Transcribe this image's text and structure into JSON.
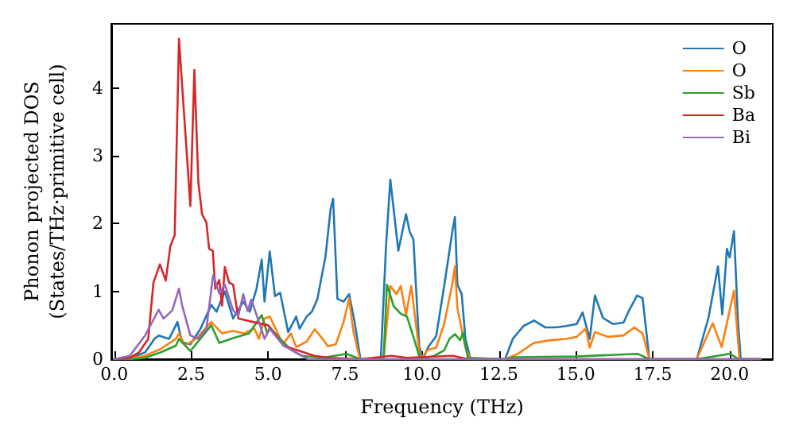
{
  "chart_data": {
    "type": "line",
    "xlabel": "Frequency (THz)",
    "ylabel": "Phonon projected DOS\n(States/THz·primitive cell)",
    "xlim": [
      -0.1,
      21.4
    ],
    "ylim": [
      0,
      4.95
    ],
    "xticks": [
      {
        "value": 0,
        "label": "0.0"
      },
      {
        "value": 2.5,
        "label": "2.5"
      },
      {
        "value": 5,
        "label": "5.0"
      },
      {
        "value": 7.5,
        "label": "7.5"
      },
      {
        "value": 10,
        "label": "10.0"
      },
      {
        "value": 12.5,
        "label": "12.5"
      },
      {
        "value": 15,
        "label": "15.0"
      },
      {
        "value": 17.5,
        "label": "17.5"
      },
      {
        "value": 20,
        "label": "20.0"
      }
    ],
    "yticks": [
      0,
      1,
      2,
      3,
      4
    ],
    "grid": false,
    "legend": "top right",
    "marker": "none",
    "line_style": "solid",
    "series": [
      {
        "name": "O",
        "color": "#1f77b4",
        "x": [
          0,
          0.5,
          1.0,
          1.3,
          1.44,
          1.78,
          2.05,
          2.2,
          2.47,
          2.8,
          3.15,
          3.32,
          3.59,
          3.86,
          4.19,
          4.4,
          4.62,
          4.79,
          4.88,
          5.05,
          5.22,
          5.39,
          5.65,
          5.91,
          6.02,
          6.25,
          6.42,
          6.6,
          6.86,
          7.03,
          7.11,
          7.25,
          7.45,
          7.63,
          7.8,
          8.0,
          8.66,
          8.83,
          8.97,
          9.23,
          9.48,
          9.6,
          9.72,
          9.91,
          10.03,
          10.2,
          10.46,
          10.72,
          10.98,
          11.07,
          11.15,
          11.29,
          11.41,
          11.58,
          12.7,
          12.95,
          13.3,
          13.64,
          14.0,
          14.35,
          14.69,
          15.03,
          15.22,
          15.45,
          15.62,
          15.88,
          16.2,
          16.55,
          16.72,
          16.99,
          17.17,
          17.39,
          18.93,
          19.31,
          19.62,
          19.76,
          19.91,
          20.0,
          20.14,
          20.27,
          20.36,
          21.0
        ],
        "values": [
          0,
          0.02,
          0.1,
          0.3,
          0.35,
          0.3,
          0.55,
          0.25,
          0.22,
          0.45,
          0.8,
          0.7,
          1.0,
          0.6,
          0.85,
          0.7,
          1.04,
          1.47,
          0.85,
          1.59,
          0.93,
          0.98,
          0.4,
          0.63,
          0.45,
          0.63,
          0.7,
          0.89,
          1.51,
          2.22,
          2.37,
          0.89,
          0.85,
          0.96,
          0.57,
          0,
          0,
          1.67,
          2.65,
          1.6,
          2.14,
          1.88,
          1.77,
          0.19,
          0,
          0.18,
          0.34,
          1.08,
          1.87,
          2.1,
          1.1,
          0.96,
          0.3,
          0,
          0,
          0.3,
          0.49,
          0.57,
          0.47,
          0.47,
          0.49,
          0.52,
          0.69,
          0.3,
          0.94,
          0.61,
          0.52,
          0.54,
          0.71,
          0.94,
          0.9,
          0,
          0,
          0.61,
          1.37,
          0.66,
          1.63,
          1.5,
          1.89,
          0.56,
          0,
          0
        ]
      },
      {
        "name": "O",
        "color": "#ff7f0e",
        "x": [
          0,
          0.5,
          1.0,
          1.5,
          2.0,
          2.1,
          2.3,
          2.65,
          3.15,
          3.5,
          3.86,
          4.2,
          4.55,
          4.7,
          4.88,
          5.05,
          5.22,
          5.48,
          5.74,
          5.91,
          6.25,
          6.51,
          6.77,
          6.94,
          7.2,
          7.45,
          7.63,
          7.77,
          7.98,
          8.75,
          8.97,
          9.17,
          9.31,
          9.48,
          9.65,
          9.94,
          10.2,
          10.46,
          10.72,
          10.98,
          11.07,
          11.15,
          11.41,
          11.58,
          12.7,
          13.12,
          13.64,
          14.17,
          14.69,
          15.03,
          15.32,
          15.45,
          15.62,
          16.05,
          16.55,
          16.9,
          17.17,
          17.39,
          18.93,
          19.45,
          19.74,
          20.14,
          20.32,
          21.0
        ],
        "values": [
          0,
          0.01,
          0.05,
          0.15,
          0.3,
          0.38,
          0.2,
          0.3,
          0.55,
          0.38,
          0.42,
          0.38,
          0.45,
          0.3,
          0.6,
          0.63,
          0.47,
          0.22,
          0.38,
          0.18,
          0.26,
          0.44,
          0.3,
          0.19,
          0.22,
          0.55,
          0.89,
          0.41,
          0,
          0,
          1.08,
          0.96,
          1.08,
          0.65,
          1.08,
          0,
          0.14,
          0.17,
          0.52,
          1.1,
          1.37,
          0.75,
          0.17,
          0,
          0,
          0.08,
          0.24,
          0.28,
          0.3,
          0.33,
          0.45,
          0.17,
          0.4,
          0.33,
          0.35,
          0.47,
          0.38,
          0,
          0,
          0.53,
          0.18,
          1.01,
          0,
          0
        ]
      },
      {
        "name": "Sb",
        "color": "#2ca02c",
        "x": [
          0,
          0.5,
          1.0,
          1.5,
          2.0,
          2.1,
          2.47,
          3.15,
          3.41,
          3.86,
          4.38,
          4.79,
          4.97,
          5.05,
          5.39,
          5.74,
          6.08,
          6.77,
          7.54,
          8.0,
          8.75,
          8.86,
          9.08,
          9.31,
          9.51,
          9.72,
          9.94,
          10.4,
          10.72,
          10.89,
          11.07,
          11.24,
          11.33,
          11.49,
          12.7,
          13.0,
          15.0,
          17.0,
          17.39,
          18.93,
          20.0,
          20.3,
          21.0
        ],
        "values": [
          0,
          0,
          0.02,
          0.1,
          0.2,
          0.3,
          0.12,
          0.5,
          0.24,
          0.31,
          0.38,
          0.65,
          0.38,
          0.47,
          0.3,
          0.14,
          0.05,
          0.02,
          0.08,
          0,
          0,
          1.1,
          0.78,
          0.67,
          0.63,
          0.33,
          0,
          0.05,
          0.13,
          0.3,
          0.37,
          0.28,
          0.39,
          0.02,
          0,
          0.03,
          0.04,
          0.08,
          0,
          0,
          0.08,
          0,
          0
        ]
      },
      {
        "name": "Ba",
        "color": "#d62728",
        "x": [
          0,
          0.5,
          0.8,
          1.1,
          1.27,
          1.48,
          1.67,
          1.82,
          1.96,
          2.1,
          2.47,
          2.6,
          2.73,
          2.85,
          2.99,
          3.08,
          3.2,
          3.28,
          3.41,
          3.5,
          3.59,
          3.73,
          3.86,
          4.03,
          4.5,
          5.0,
          5.5,
          6.5,
          7.0,
          8.0,
          9.0,
          9.5,
          11.0,
          11.5,
          21.0
        ],
        "values": [
          0,
          0.02,
          0.1,
          0.3,
          1.13,
          1.4,
          1.16,
          1.67,
          1.83,
          4.73,
          2.26,
          4.27,
          2.61,
          2.14,
          2.02,
          1.63,
          1.6,
          1.04,
          1.17,
          0.79,
          1.36,
          1.13,
          1.1,
          0.6,
          0.55,
          0.5,
          0.2,
          0.05,
          0.02,
          0,
          0.05,
          0.02,
          0.05,
          0,
          0
        ]
      },
      {
        "name": "Bi",
        "color": "#9467bd",
        "x": [
          0,
          0.5,
          1.0,
          1.44,
          1.6,
          1.88,
          2.1,
          2.2,
          2.47,
          2.73,
          2.99,
          3.21,
          3.41,
          3.59,
          3.86,
          4.03,
          4.19,
          4.33,
          4.45,
          4.7,
          4.88,
          5.05,
          5.5,
          6.3,
          21.0
        ],
        "values": [
          0,
          0.05,
          0.35,
          0.73,
          0.6,
          0.72,
          1.04,
          0.8,
          0.35,
          0.3,
          0.45,
          1.24,
          0.97,
          1.1,
          0.72,
          0.64,
          0.96,
          0.71,
          0.88,
          0.55,
          0.3,
          0.45,
          0.2,
          0,
          0
        ]
      }
    ]
  }
}
